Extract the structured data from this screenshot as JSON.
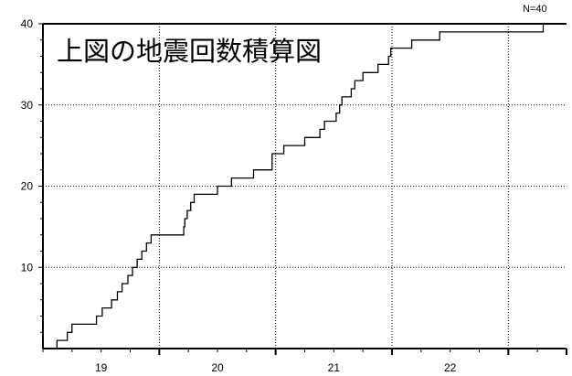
{
  "chart_data": {
    "type": "line",
    "step": true,
    "inset_title": "上図の地震回数積算図",
    "count_label": "N=40",
    "grid": true,
    "grid_style": "dotted",
    "xlim": [
      18.5,
      23.0
    ],
    "ylim": [
      0,
      40
    ],
    "x_ticks": [
      19,
      20,
      21,
      22
    ],
    "x_tick_labels": [
      "19",
      "20",
      "21",
      "22"
    ],
    "x_grid_lines": [
      19.5,
      20.5,
      21.5,
      22.5
    ],
    "y_ticks": [
      10,
      20,
      30,
      40
    ],
    "y_tick_labels": [
      "10",
      "20",
      "30",
      "40"
    ],
    "y_grid_lines": [
      10,
      20,
      30
    ],
    "line_color": "#000000",
    "series": [
      {
        "x": [
          18.53,
          18.62,
          18.67,
          18.71,
          18.75,
          18.8,
          18.96,
          19.01,
          19.05,
          19.09,
          19.14,
          19.18,
          19.23,
          19.27,
          19.31,
          19.35,
          19.39,
          19.43,
          19.47,
          19.71,
          19.72,
          19.73,
          19.74,
          19.75,
          19.77,
          19.79,
          19.8,
          19.81,
          19.82,
          19.83,
          20.0,
          20.12,
          20.31,
          20.47,
          20.54,
          20.57,
          20.75,
          20.88,
          20.92,
          21.02,
          21.05,
          21.07,
          21.1,
          21.11,
          21.15,
          21.18,
          21.21,
          21.25,
          21.33,
          21.38,
          21.44,
          21.47,
          21.49,
          21.54,
          21.61,
          21.67,
          21.78,
          21.88,
          21.91,
          22.01,
          22.06,
          22.08,
          22.1,
          22.11,
          22.13,
          22.26,
          22.8,
          22.91,
          23.0
        ],
        "y": [
          0,
          1,
          1,
          2,
          3,
          3,
          4,
          5,
          5,
          6,
          7,
          8,
          9,
          10,
          11,
          12,
          13,
          14,
          14,
          15,
          16,
          16,
          17,
          17,
          18,
          18,
          19,
          19,
          19,
          19,
          20,
          21,
          22,
          24,
          24,
          25,
          26,
          27,
          28,
          29,
          30,
          31,
          31,
          31,
          32,
          33,
          33,
          34,
          34,
          35,
          35,
          36,
          37,
          37,
          37,
          38,
          38,
          38,
          39,
          39,
          39,
          39,
          39,
          39,
          39,
          39,
          40,
          40,
          40
        ]
      }
    ]
  }
}
